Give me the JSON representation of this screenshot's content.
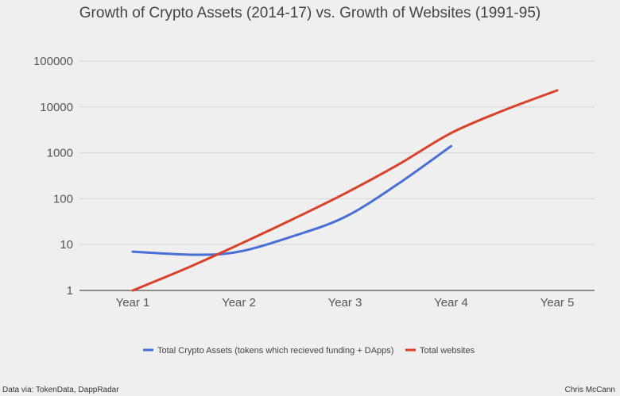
{
  "chart_data": {
    "type": "line",
    "title": "Growth of Crypto Assets (2014-17) vs. Growth of Websites (1991-95)",
    "xlabel": "",
    "ylabel": "",
    "y_scale": "log",
    "ylim": [
      1,
      100000
    ],
    "y_ticks": [
      "1",
      "10",
      "100",
      "1000",
      "10000",
      "100000"
    ],
    "y_tick_values": [
      1,
      10,
      100,
      1000,
      10000,
      100000
    ],
    "categories": [
      "Year 1",
      "Year 2",
      "Year 3",
      "Year 4",
      "Year 5"
    ],
    "grid": true,
    "legend_position": "bottom",
    "series": [
      {
        "name": "Total Crypto Assets (tokens which recieved funding + DApps)",
        "color": "#4a6fd4",
        "x": [
          1,
          1.6,
          2,
          2.5,
          3,
          3.5,
          4
        ],
        "values": [
          7,
          6,
          7,
          15,
          40,
          210,
          1400
        ]
      },
      {
        "name": "Total websites",
        "color": "#d9412b",
        "x": [
          1,
          1.5,
          2,
          2.5,
          3,
          3.5,
          4,
          4.5,
          5
        ],
        "values": [
          1,
          3,
          10,
          35,
          130,
          550,
          2700,
          8500,
          23000
        ]
      }
    ]
  },
  "footer": {
    "source": "Data via: TokenData, DappRadar",
    "author": "Chris McCann"
  }
}
